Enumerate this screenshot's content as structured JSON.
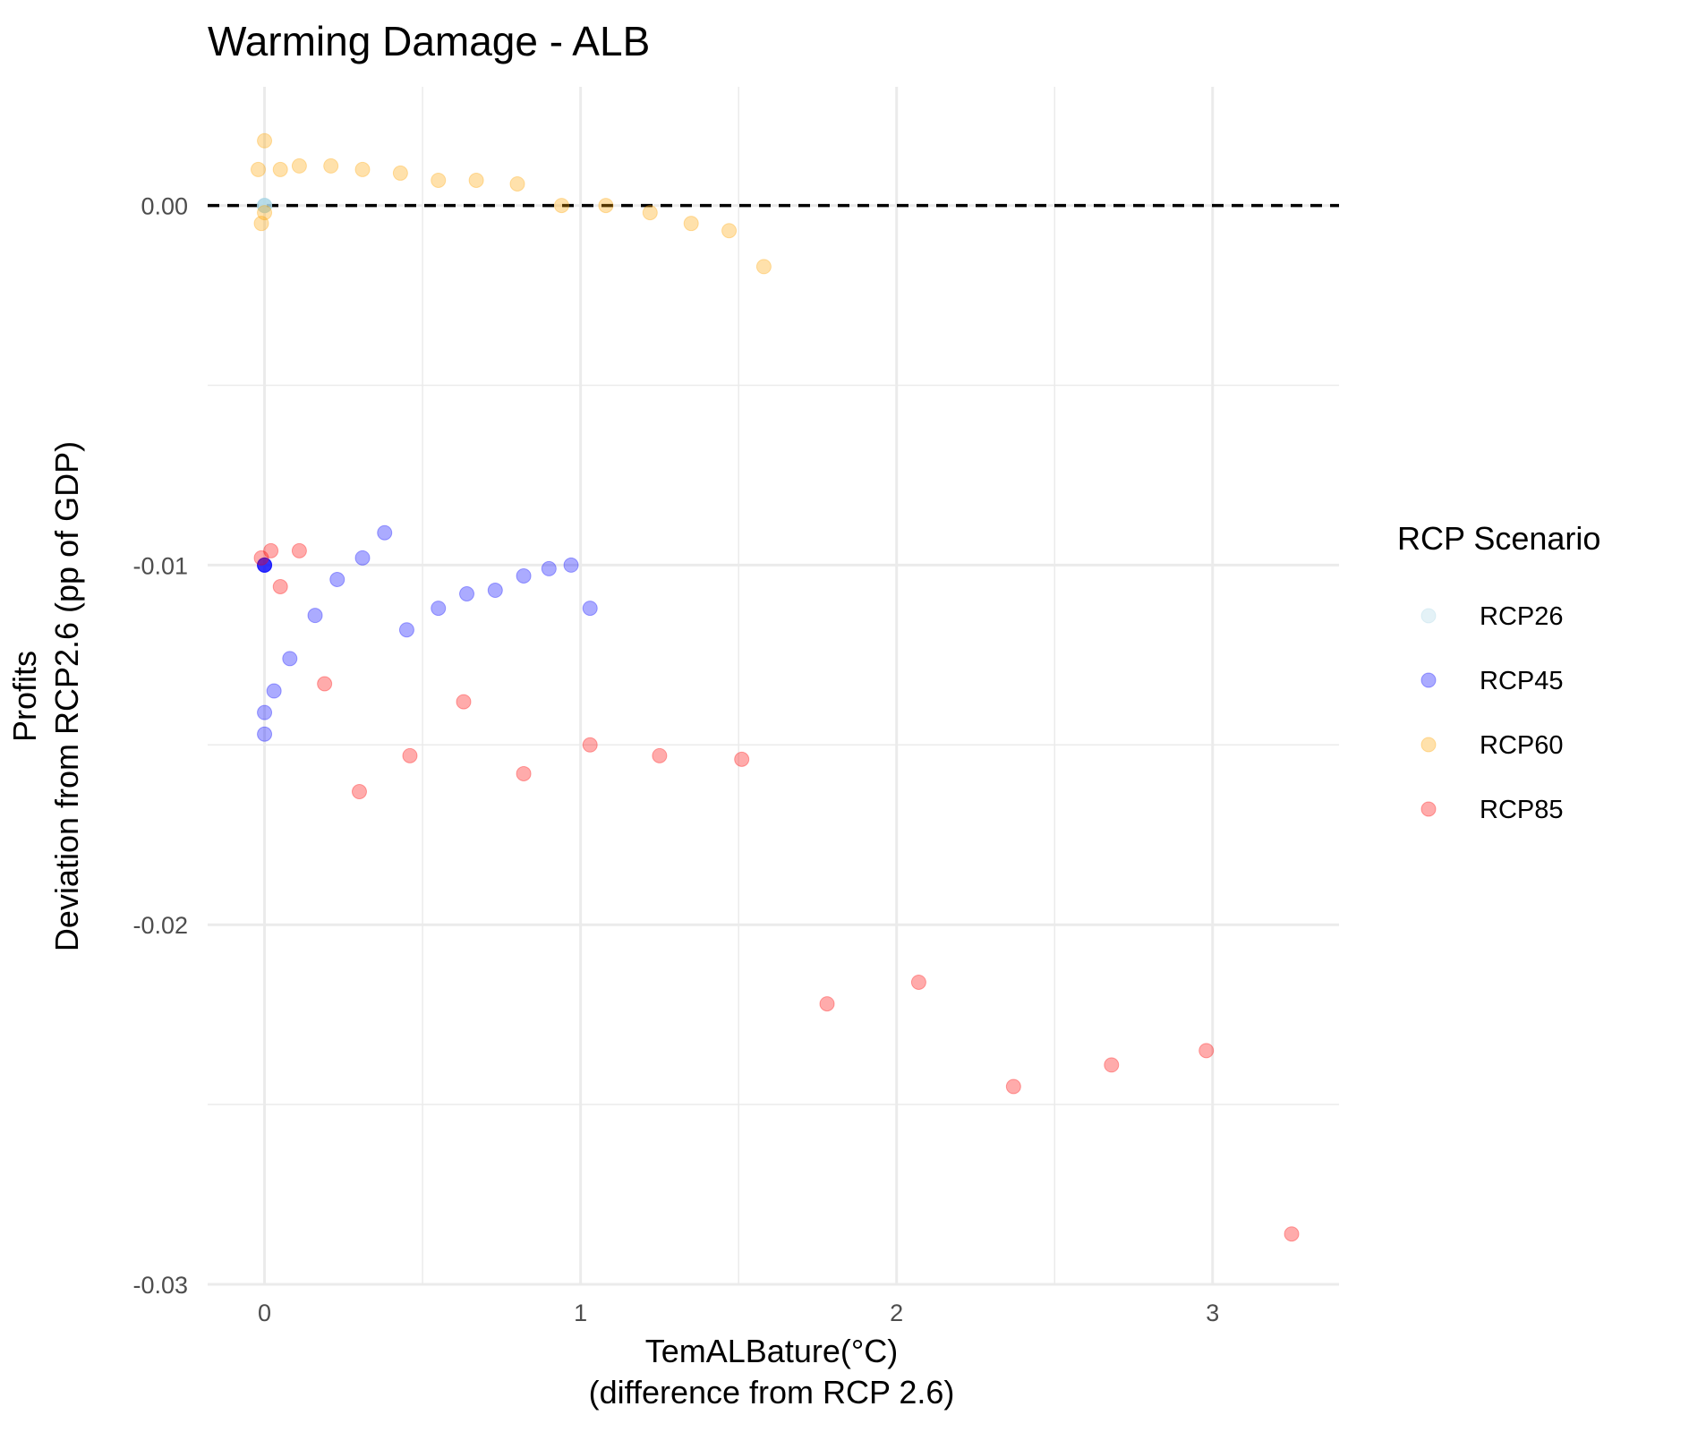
{
  "chart_data": {
    "type": "scatter",
    "title": "Warming Damage - ALB",
    "xlabel": [
      "TemALBature(°C)",
      "(difference from RCP 2.6)"
    ],
    "ylabel": [
      "Profits",
      "Deviation from RCP2.6 (pp of GDP)"
    ],
    "xlim": [
      -0.18,
      3.4
    ],
    "ylim": [
      -0.03,
      0.0033
    ],
    "x_ticks": [
      0,
      1,
      2,
      3
    ],
    "x_tick_labels": [
      "0",
      "1",
      "2",
      "3"
    ],
    "y_ticks": [
      0,
      -0.01,
      -0.02,
      -0.03
    ],
    "y_tick_labels": [
      "0.00",
      "-0.01",
      "-0.02",
      "-0.03"
    ],
    "x_minor_ticks": [
      0.5,
      1.5,
      2.5
    ],
    "y_minor_ticks": [
      -0.005,
      -0.015,
      -0.025
    ],
    "grid": true,
    "reference_line": {
      "y": 0,
      "style": "dashed",
      "color": "#000000"
    },
    "legend": {
      "title": "RCP Scenario",
      "position": "right"
    },
    "series": [
      {
        "name": "RCP26",
        "color": "#add8e6",
        "points": [
          [
            0.0,
            0.0
          ],
          [
            0.0,
            0.0
          ],
          [
            0.0,
            0.0
          ],
          [
            0.0,
            0.0
          ],
          [
            0.0,
            0.0
          ]
        ]
      },
      {
        "name": "RCP45",
        "color": "#0000ff",
        "points": [
          [
            0.0,
            -0.01
          ],
          [
            0.0,
            -0.01
          ],
          [
            0.0,
            -0.01
          ],
          [
            0.0,
            -0.01
          ],
          [
            0.0,
            -0.0141
          ],
          [
            0.0,
            -0.0147
          ],
          [
            0.03,
            -0.0135
          ],
          [
            0.08,
            -0.0126
          ],
          [
            0.16,
            -0.0114
          ],
          [
            0.23,
            -0.0104
          ],
          [
            0.31,
            -0.0098
          ],
          [
            0.38,
            -0.0091
          ],
          [
            0.45,
            -0.0118
          ],
          [
            0.55,
            -0.0112
          ],
          [
            0.64,
            -0.0108
          ],
          [
            0.73,
            -0.0107
          ],
          [
            0.82,
            -0.0103
          ],
          [
            0.9,
            -0.0101
          ],
          [
            0.97,
            -0.01
          ],
          [
            1.03,
            -0.0112
          ]
        ]
      },
      {
        "name": "RCP60",
        "color": "#ffa500",
        "points": [
          [
            -0.02,
            0.001
          ],
          [
            0.0,
            0.0018
          ],
          [
            -0.01,
            -0.0005
          ],
          [
            0.0,
            -0.0002
          ],
          [
            0.05,
            0.001
          ],
          [
            0.11,
            0.0011
          ],
          [
            0.21,
            0.0011
          ],
          [
            0.31,
            0.001
          ],
          [
            0.43,
            0.0009
          ],
          [
            0.55,
            0.0007
          ],
          [
            0.67,
            0.0007
          ],
          [
            0.8,
            0.0006
          ],
          [
            0.94,
            0.0
          ],
          [
            1.08,
            -0.0
          ],
          [
            1.22,
            -0.0002
          ],
          [
            1.35,
            -0.0005
          ],
          [
            1.47,
            -0.0007
          ],
          [
            1.58,
            -0.0017
          ]
        ]
      },
      {
        "name": "RCP85",
        "color": "#ff0000",
        "points": [
          [
            -0.01,
            -0.0098
          ],
          [
            0.02,
            -0.0096
          ],
          [
            0.05,
            -0.0106
          ],
          [
            0.11,
            -0.0096
          ],
          [
            0.19,
            -0.0133
          ],
          [
            0.3,
            -0.0163
          ],
          [
            0.46,
            -0.0153
          ],
          [
            0.63,
            -0.0138
          ],
          [
            0.82,
            -0.0158
          ],
          [
            1.03,
            -0.015
          ],
          [
            1.25,
            -0.0153
          ],
          [
            1.51,
            -0.0154
          ],
          [
            1.78,
            -0.0222
          ],
          [
            2.07,
            -0.0216
          ],
          [
            2.37,
            -0.0245
          ],
          [
            2.68,
            -0.0239
          ],
          [
            2.98,
            -0.0235
          ],
          [
            3.25,
            -0.0286
          ]
        ]
      }
    ]
  }
}
